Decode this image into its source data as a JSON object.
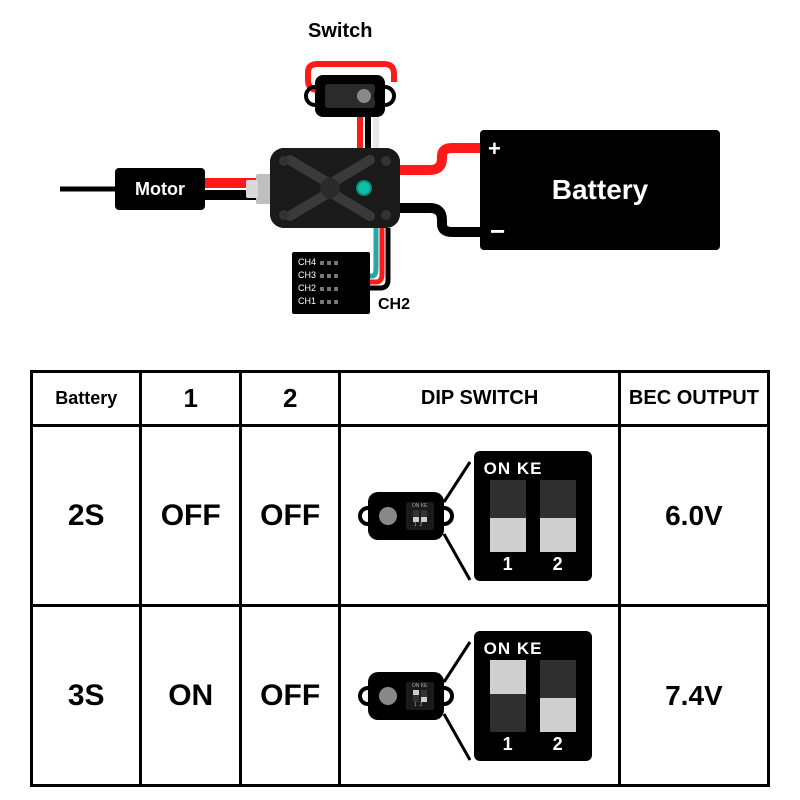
{
  "colors": {
    "wire_red": "#ff1a1a",
    "wire_black": "#000000",
    "wire_white": "#e8e8e8",
    "wire_teal": "#2aa6a6",
    "esc_body": "#1a1a1a",
    "esc_led": "#0dbfa6",
    "slider": "#cfcfcf",
    "slot_bg": "#2f2f2f"
  },
  "diagram": {
    "switch_label": "Switch",
    "motor_label": "Motor",
    "battery_label": "Battery",
    "battery_plus": "+",
    "battery_minus": "−",
    "receiver_channels": [
      "CH4",
      "CH3",
      "CH2",
      "CH1"
    ],
    "receiver_out_label": "CH2"
  },
  "table": {
    "headers": {
      "battery": "Battery",
      "c1": "1",
      "c2": "2",
      "dip": "DIP SWITCH",
      "bec": "BEC OUTPUT"
    },
    "rows": [
      {
        "battery": "2S",
        "s1": "OFF",
        "s2": "OFF",
        "dip": {
          "top": "ON KE",
          "pos1": "bottom",
          "pos2": "bottom",
          "n1": "1",
          "n2": "2",
          "mini_pos1": "bottom",
          "mini_pos2": "bottom"
        },
        "bec": "6.0V"
      },
      {
        "battery": "3S",
        "s1": "ON",
        "s2": "OFF",
        "dip": {
          "top": "ON KE",
          "pos1": "top",
          "pos2": "bottom",
          "n1": "1",
          "n2": "2",
          "mini_pos1": "top",
          "mini_pos2": "bottom"
        },
        "bec": "7.4V"
      }
    ]
  }
}
